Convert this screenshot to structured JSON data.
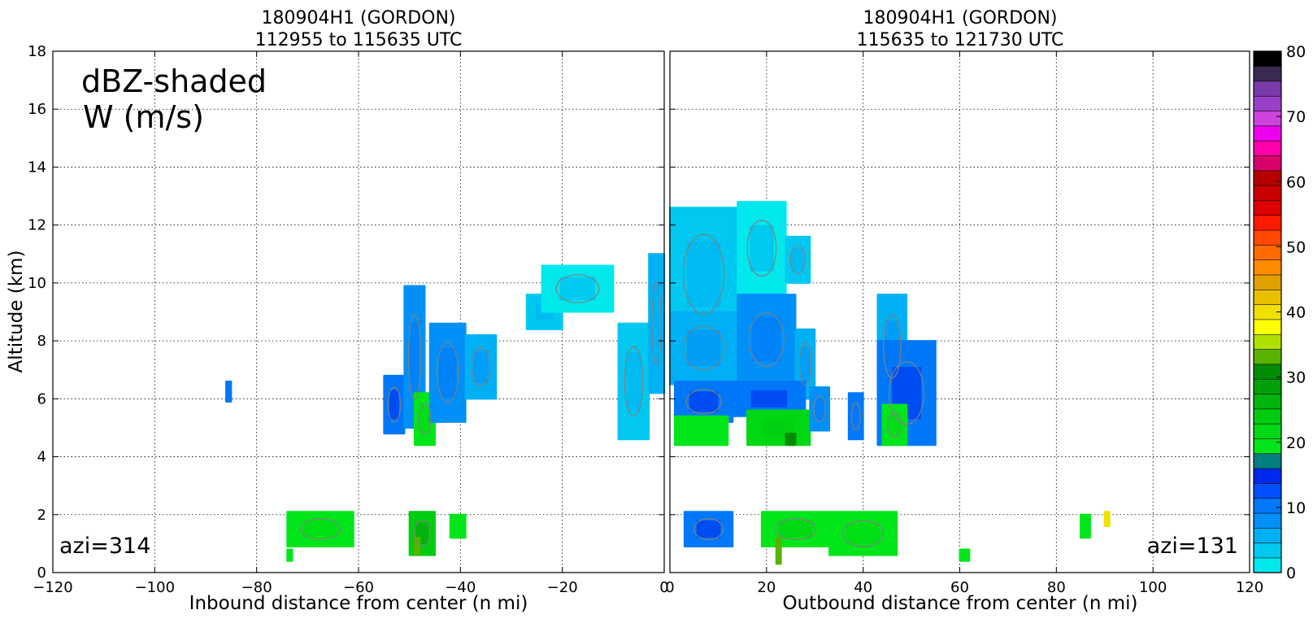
{
  "chart_data": [
    {
      "type": "heatmap",
      "title_line1": "180904H1 (GORDON)",
      "title_line2": "112955 to 115635 UTC",
      "xlabel": "Inbound distance from center (n mi)",
      "ylabel": "Altitude (km)",
      "xlim": [
        -120,
        0
      ],
      "ylim": [
        0,
        18
      ],
      "xticks": [
        -120,
        -100,
        -80,
        -60,
        -40,
        -20,
        0
      ],
      "yticks": [
        0,
        2,
        4,
        6,
        8,
        10,
        12,
        14,
        16,
        18
      ],
      "grid": true,
      "annotation_title": "dBZ-shaded",
      "annotation_subtitle": "W (m/s)",
      "azimuth_label": "azi=314",
      "regions": [
        {
          "x0": -86,
          "x1": -85,
          "y0": 5.9,
          "y1": 6.6,
          "dbz": 10
        },
        {
          "x0": -55,
          "x1": -51,
          "y0": 4.8,
          "y1": 6.8,
          "dbz": 11
        },
        {
          "x0": -51,
          "x1": -47,
          "y0": 5.0,
          "y1": 9.9,
          "dbz": 8
        },
        {
          "x0": -49,
          "x1": -45,
          "y0": 4.4,
          "y1": 6.2,
          "dbz": 19
        },
        {
          "x0": -46,
          "x1": -39,
          "y0": 5.2,
          "y1": 8.6,
          "dbz": 7
        },
        {
          "x0": -39,
          "x1": -33,
          "y0": 6.0,
          "y1": 8.2,
          "dbz": 6
        },
        {
          "x0": -27,
          "x1": -20,
          "y0": 8.4,
          "y1": 9.6,
          "dbz": 3
        },
        {
          "x0": -24,
          "x1": -10,
          "y0": 9.0,
          "y1": 10.6,
          "dbz": 2
        },
        {
          "x0": -9,
          "x1": -3,
          "y0": 4.6,
          "y1": 8.6,
          "dbz": 3
        },
        {
          "x0": -3,
          "x1": 0,
          "y0": 6.2,
          "y1": 11.0,
          "dbz": 5
        },
        {
          "x0": -74,
          "x1": -61,
          "y0": 0.9,
          "y1": 2.1,
          "dbz": 19
        },
        {
          "x0": -50,
          "x1": -45,
          "y0": 0.6,
          "y1": 2.1,
          "dbz": 25
        },
        {
          "x0": -49,
          "x1": -48,
          "y0": 0.6,
          "y1": 1.2,
          "dbz": 34
        },
        {
          "x0": -42,
          "x1": -39,
          "y0": 1.2,
          "y1": 2.0,
          "dbz": 20
        },
        {
          "x0": -74,
          "x1": -73,
          "y0": 0.4,
          "y1": 0.8,
          "dbz": 20
        }
      ]
    },
    {
      "type": "heatmap",
      "title_line1": "180904H1 (GORDON)",
      "title_line2": "115635 to 121730 UTC",
      "xlabel": "Outbound distance from center (n mi)",
      "ylabel": "",
      "xlim": [
        0,
        120
      ],
      "ylim": [
        0,
        18
      ],
      "xticks": [
        0,
        20,
        40,
        60,
        80,
        100,
        120
      ],
      "yticks": [
        0,
        2,
        4,
        6,
        8,
        10,
        12,
        14,
        16,
        18
      ],
      "grid": true,
      "azimuth_label": "azi=131",
      "regions": [
        {
          "x0": 0,
          "x1": 14,
          "y0": 8.0,
          "y1": 12.6,
          "dbz": 3
        },
        {
          "x0": 14,
          "x1": 24,
          "y0": 9.6,
          "y1": 12.8,
          "dbz": 2
        },
        {
          "x0": 24,
          "x1": 29,
          "y0": 10.0,
          "y1": 11.6,
          "dbz": 3
        },
        {
          "x0": 0,
          "x1": 14,
          "y0": 6.5,
          "y1": 9.0,
          "dbz": 6
        },
        {
          "x0": 14,
          "x1": 26,
          "y0": 6.5,
          "y1": 9.6,
          "dbz": 7
        },
        {
          "x0": 26,
          "x1": 30,
          "y0": 6.0,
          "y1": 8.4,
          "dbz": 6
        },
        {
          "x0": 1,
          "x1": 13,
          "y0": 5.2,
          "y1": 6.6,
          "dbz": 11
        },
        {
          "x0": 13,
          "x1": 28,
          "y0": 5.4,
          "y1": 6.6,
          "dbz": 11
        },
        {
          "x0": 1,
          "x1": 12,
          "y0": 4.4,
          "y1": 5.4,
          "dbz": 20
        },
        {
          "x0": 16,
          "x1": 29,
          "y0": 4.4,
          "y1": 5.6,
          "dbz": 21
        },
        {
          "x0": 24,
          "x1": 26,
          "y0": 4.4,
          "y1": 4.8,
          "dbz": 31
        },
        {
          "x0": 29,
          "x1": 33,
          "y0": 4.9,
          "y1": 6.4,
          "dbz": 8
        },
        {
          "x0": 37,
          "x1": 40,
          "y0": 4.6,
          "y1": 6.2,
          "dbz": 10
        },
        {
          "x0": 43,
          "x1": 49,
          "y0": 6.0,
          "y1": 9.6,
          "dbz": 6
        },
        {
          "x0": 43,
          "x1": 55,
          "y0": 4.4,
          "y1": 8.0,
          "dbz": 11
        },
        {
          "x0": 44,
          "x1": 49,
          "y0": 4.4,
          "y1": 5.8,
          "dbz": 19
        },
        {
          "x0": 3,
          "x1": 13,
          "y0": 0.9,
          "y1": 2.1,
          "dbz": 11
        },
        {
          "x0": 19,
          "x1": 33,
          "y0": 0.9,
          "y1": 2.1,
          "dbz": 20
        },
        {
          "x0": 33,
          "x1": 47,
          "y0": 0.6,
          "y1": 2.1,
          "dbz": 19
        },
        {
          "x0": 22,
          "x1": 23,
          "y0": 0.3,
          "y1": 1.2,
          "dbz": 34
        },
        {
          "x0": 60,
          "x1": 62,
          "y0": 0.4,
          "y1": 0.8,
          "dbz": 20
        },
        {
          "x0": 85,
          "x1": 87,
          "y0": 1.2,
          "y1": 2.0,
          "dbz": 19
        },
        {
          "x0": 90,
          "x1": 91,
          "y0": 1.6,
          "y1": 2.1,
          "dbz": 40
        }
      ]
    }
  ],
  "colorbar": {
    "ticks": [
      0,
      10,
      20,
      30,
      40,
      50,
      60,
      70,
      80
    ],
    "levels": [
      0,
      2.5,
      5,
      7.5,
      10,
      12.5,
      15,
      17.5,
      20,
      22.5,
      25,
      27.5,
      30,
      32.5,
      35,
      37.5,
      40,
      42.5,
      45,
      47.5,
      50,
      52.5,
      55,
      57.5,
      60,
      62.5,
      65,
      67.5,
      70,
      72.5,
      75,
      77.5,
      80
    ],
    "colors": [
      "#00e8ec",
      "#00c8f0",
      "#00b0f4",
      "#0090f8",
      "#0078f8",
      "#0050ff",
      "#0028ee",
      "#008080",
      "#00e61a",
      "#00d814",
      "#00cc10",
      "#00b40c",
      "#00a008",
      "#008c04",
      "#59b300",
      "#b0e000",
      "#ffff00",
      "#f0e000",
      "#e8c000",
      "#e0a000",
      "#ff8c00",
      "#ff6a00",
      "#ff4800",
      "#ff1a00",
      "#e00000",
      "#c80000",
      "#b40000",
      "#d8006a",
      "#ff00aa",
      "#ee00ee",
      "#cc44dd",
      "#9a40c8",
      "#7a3aaa",
      "#3a2a50",
      "#000000"
    ]
  }
}
